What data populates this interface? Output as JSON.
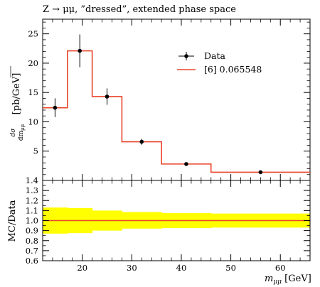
{
  "chart_data": {
    "type": "line",
    "title": "Z → μμ, ”dressed”, extended phase space",
    "xlabel": "mμμ [GeV]",
    "ylabel": "dσ/dmμμ [pb/GeV]",
    "ylabel_ratio": "MC/Data",
    "xlim": [
      12,
      66
    ],
    "ylim": [
      0,
      27.5
    ],
    "ylim_ratio": [
      0.6,
      1.4
    ],
    "x_ticks": [
      20,
      30,
      40,
      50,
      60
    ],
    "y_ticks": [
      5,
      10,
      15,
      20,
      25
    ],
    "y_ticks_ratio": [
      "0.6",
      "0.7",
      "0.8",
      "0.9",
      "1.0",
      "1.1",
      "1.2",
      "1.3",
      "1.4"
    ],
    "legend_position": "top-right",
    "legend": [
      {
        "label": "Data",
        "marker": "point-errorbar",
        "color": "#000000"
      },
      {
        "label": "[6] 0.065548",
        "marker": "line",
        "color": "#e8462b"
      }
    ],
    "bins": [
      [
        12,
        17
      ],
      [
        17,
        22
      ],
      [
        22,
        28
      ],
      [
        28,
        36
      ],
      [
        36,
        46
      ],
      [
        46,
        66
      ]
    ],
    "series": [
      {
        "name": "Data",
        "x": [
          14.5,
          19.5,
          25,
          32,
          41,
          56
        ],
        "y": [
          12.4,
          22.1,
          14.3,
          6.6,
          2.8,
          1.4
        ],
        "yerr": [
          1.6,
          2.8,
          1.4,
          0.5,
          0.2,
          0.1
        ]
      },
      {
        "name": "[6] 0.065548",
        "values": [
          12.4,
          22.1,
          14.3,
          6.6,
          2.8,
          1.4
        ]
      }
    ],
    "ratio": {
      "mc_over_data": [
        1.0,
        1.0,
        1.0,
        1.0,
        1.0,
        1.0
      ],
      "band_low": [
        0.87,
        0.875,
        0.9,
        0.92,
        0.925,
        0.93
      ],
      "band_high": [
        1.13,
        1.125,
        1.1,
        1.085,
        1.075,
        1.07
      ]
    },
    "colors": {
      "mc": "#e8462b",
      "band": "#ffff00",
      "data": "#000000"
    },
    "grid": false
  }
}
